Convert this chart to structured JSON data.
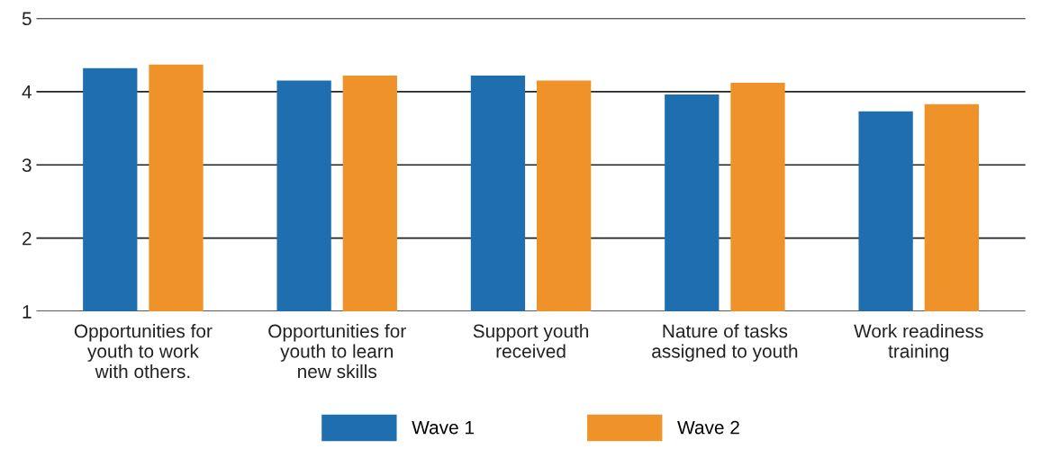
{
  "chart_data": {
    "type": "bar",
    "categories": [
      "Opportunities for\nyouth to work\nwith others.",
      "Opportunities for\nyouth to learn\nnew skills",
      "Support youth\nreceived",
      "Nature of tasks\nassigned to youth",
      "Work readiness\ntraining"
    ],
    "series": [
      {
        "name": "Wave 1",
        "color": "#1f6fb0",
        "values": [
          4.32,
          4.15,
          4.22,
          3.96,
          3.73
        ]
      },
      {
        "name": "Wave 2",
        "color": "#f0922a",
        "values": [
          4.37,
          4.22,
          4.15,
          4.12,
          3.83
        ]
      }
    ],
    "ylim": [
      1,
      5
    ],
    "yticks": [
      1,
      2,
      3,
      4,
      5
    ],
    "grid": "y",
    "legend": "bottom"
  }
}
